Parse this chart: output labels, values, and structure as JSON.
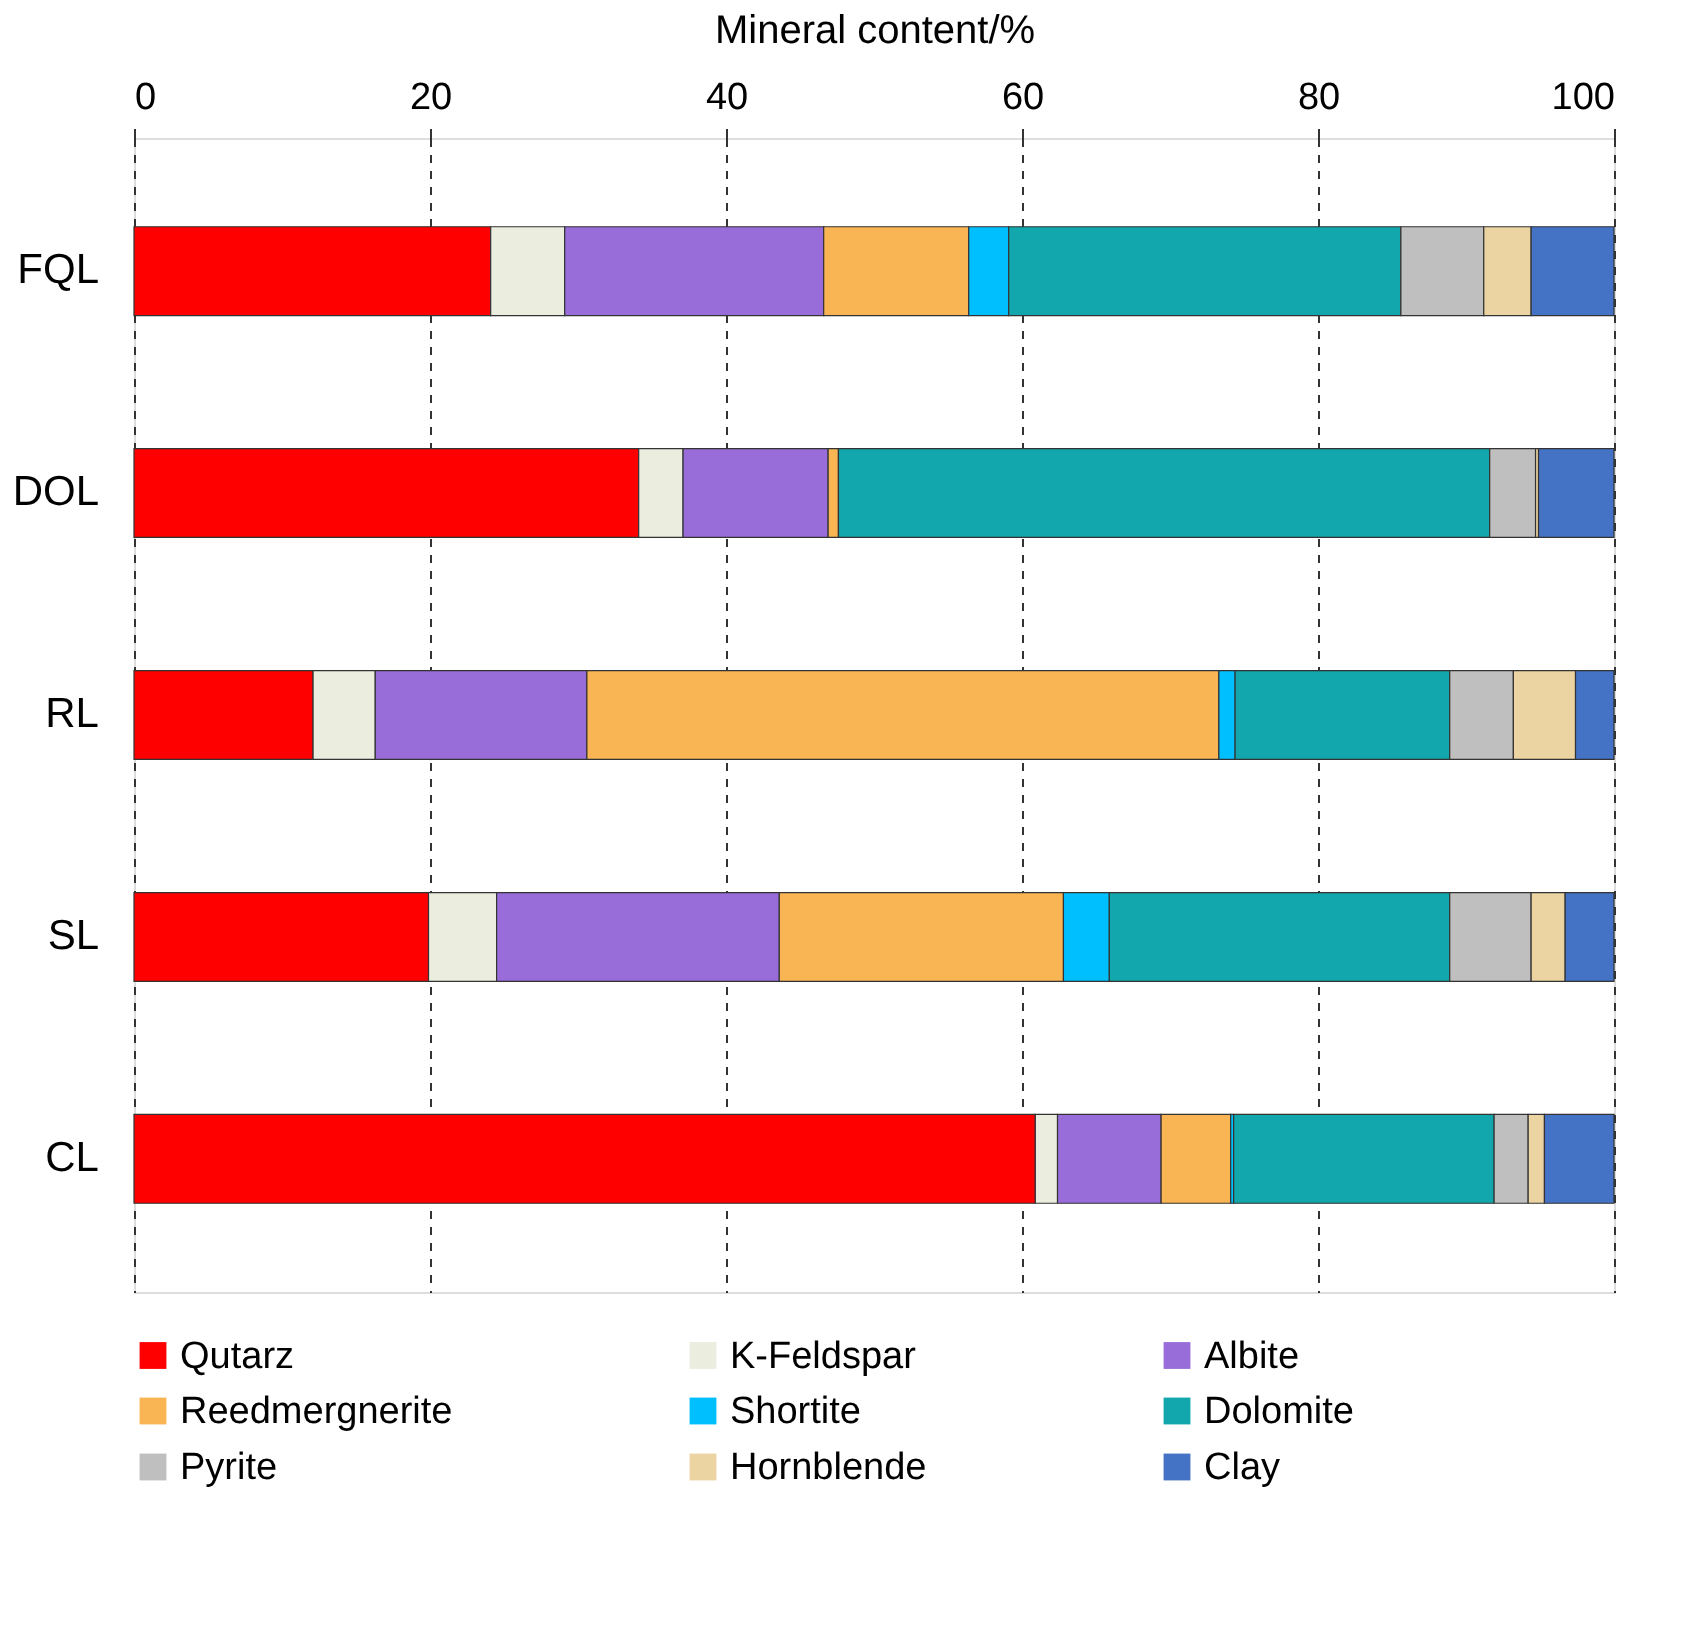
{
  "chart_data": {
    "type": "bar",
    "orientation": "horizontal",
    "stacked": true,
    "xlabel": "Mineral content/%",
    "categories": [
      "FQL",
      "DOL",
      "RL",
      "SL",
      "CL"
    ],
    "xlim": [
      0,
      100
    ],
    "xticks": [
      0,
      20,
      40,
      60,
      80,
      100
    ],
    "grid": "x",
    "legend": "bottom",
    "series": [
      {
        "name": "Qutarz",
        "color": "#ff0000",
        "values": [
          24.1,
          34.1,
          12.1,
          19.9,
          60.9
        ]
      },
      {
        "name": "K-Feldspar",
        "color": "#ebeddf",
        "values": [
          5.0,
          3.0,
          4.2,
          4.6,
          1.5
        ]
      },
      {
        "name": "Albite",
        "color": "#986dd9",
        "values": [
          17.5,
          9.8,
          14.3,
          19.1,
          7.0
        ]
      },
      {
        "name": "Reedmergnerite",
        "color": "#f9b454",
        "values": [
          9.8,
          0.7,
          42.7,
          19.2,
          4.7
        ]
      },
      {
        "name": "Shortite",
        "color": "#00bfff",
        "values": [
          2.7,
          0,
          1.1,
          3.1,
          0.2
        ]
      },
      {
        "name": "Dolomite",
        "color": "#12a6ad",
        "values": [
          26.5,
          44.0,
          14.5,
          23.0,
          17.6
        ]
      },
      {
        "name": "Pyrite",
        "color": "#bfbfbf",
        "values": [
          5.6,
          3.1,
          4.3,
          5.5,
          2.3
        ]
      },
      {
        "name": "Hornblende",
        "color": "#ebd3a2",
        "values": [
          3.2,
          0.2,
          4.2,
          2.3,
          1.1
        ]
      },
      {
        "name": "Clay",
        "color": "#4472c4",
        "values": [
          5.6,
          5.1,
          2.6,
          3.3,
          4.7
        ]
      }
    ]
  }
}
